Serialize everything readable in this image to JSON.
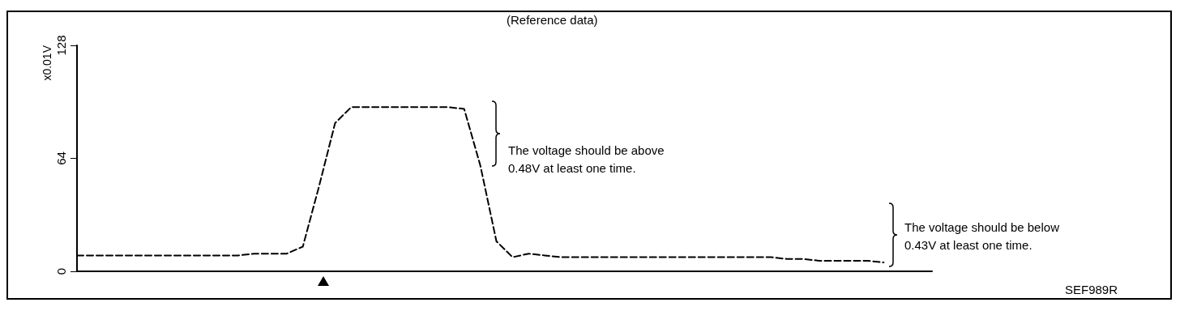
{
  "chart_data": {
    "type": "line",
    "title": "(Reference data)",
    "ylabel": "x0.01V",
    "annotations": [
      "The voltage should be above 0.48V at least one time.",
      "The voltage should be below 0.43V at least one time.",
      "SEF989R"
    ],
    "categories": [
      null,
      null,
      null,
      null,
      null,
      null,
      null,
      null,
      null,
      null,
      null,
      null,
      null,
      null,
      null,
      null,
      null,
      null,
      null,
      null,
      null,
      null,
      null,
      null,
      null,
      null,
      null,
      null,
      null,
      null,
      null,
      null,
      null,
      null,
      null,
      null,
      null,
      null,
      null,
      null,
      null,
      null,
      null,
      null,
      null,
      null,
      null,
      null,
      null,
      null,
      null,
      null,
      null,
      null
    ],
    "series": [
      {
        "color": "#000000",
        "values": [
          9,
          9,
          9,
          9,
          9,
          9,
          9,
          9,
          9,
          9,
          9,
          10,
          10,
          10,
          14,
          48,
          84,
          93,
          93,
          93,
          93,
          93,
          93,
          93,
          92,
          60,
          17,
          8,
          10,
          9,
          8,
          8,
          8,
          8,
          8,
          8,
          8,
          8,
          8,
          8,
          8,
          8,
          8,
          8,
          7,
          7,
          6,
          6,
          6,
          6,
          5,
          null,
          null,
          null
        ]
      }
    ],
    "ylim": [
      0,
      128
    ],
    "yticks": [
      0,
      64,
      128
    ],
    "grid": false,
    "marker": "none",
    "line_style": "dashed",
    "tick_labels": "y"
  }
}
